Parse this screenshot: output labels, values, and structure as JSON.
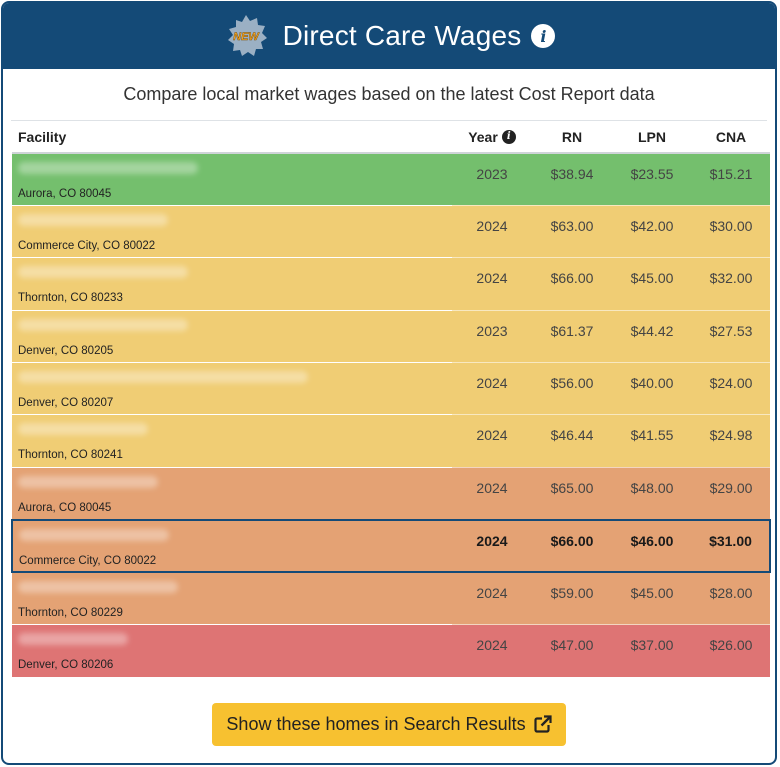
{
  "header": {
    "badge_text": "NEW",
    "title": "Direct Care Wages",
    "info_glyph": "i"
  },
  "subtitle": "Compare local market wages based on the latest Cost Report data",
  "table": {
    "columns": {
      "facility": "Facility",
      "year": "Year",
      "rn": "RN",
      "lpn": "LPN",
      "cna": "CNA"
    },
    "rows": [
      {
        "address": "Aurora, CO 80045",
        "year": "2023",
        "rn": "$38.94",
        "lpn": "$23.55",
        "cna": "$15.21",
        "band": "green"
      },
      {
        "address": "Commerce City, CO 80022",
        "year": "2024",
        "rn": "$63.00",
        "lpn": "$42.00",
        "cna": "$30.00",
        "band": "yellow"
      },
      {
        "address": "Thornton, CO 80233",
        "year": "2024",
        "rn": "$66.00",
        "lpn": "$45.00",
        "cna": "$32.00",
        "band": "yellow"
      },
      {
        "address": "Denver, CO 80205",
        "year": "2023",
        "rn": "$61.37",
        "lpn": "$44.42",
        "cna": "$27.53",
        "band": "yellow"
      },
      {
        "address": "Denver, CO 80207",
        "year": "2024",
        "rn": "$56.00",
        "lpn": "$40.00",
        "cna": "$24.00",
        "band": "yellow"
      },
      {
        "address": "Thornton, CO 80241",
        "year": "2024",
        "rn": "$46.44",
        "lpn": "$41.55",
        "cna": "$24.98",
        "band": "yellow"
      },
      {
        "address": "Aurora, CO 80045",
        "year": "2024",
        "rn": "$65.00",
        "lpn": "$48.00",
        "cna": "$29.00",
        "band": "orange"
      },
      {
        "address": "Commerce City, CO 80022",
        "year": "2024",
        "rn": "$66.00",
        "lpn": "$46.00",
        "cna": "$31.00",
        "band": "orange"
      },
      {
        "address": "Thornton, CO 80229",
        "year": "2024",
        "rn": "$59.00",
        "lpn": "$45.00",
        "cna": "$28.00",
        "band": "orange"
      },
      {
        "address": "Denver, CO 80206",
        "year": "2024",
        "rn": "$47.00",
        "lpn": "$37.00",
        "cna": "$26.00",
        "band": "red"
      }
    ]
  },
  "button": {
    "label": "Show these homes in Search Results",
    "icon": "external-link-icon"
  },
  "colors": {
    "brand": "#144a77",
    "button": "#f7c130",
    "green": "#74bf6d",
    "yellow": "#f0cd74",
    "orange": "#e4a274",
    "red": "#de7474"
  }
}
